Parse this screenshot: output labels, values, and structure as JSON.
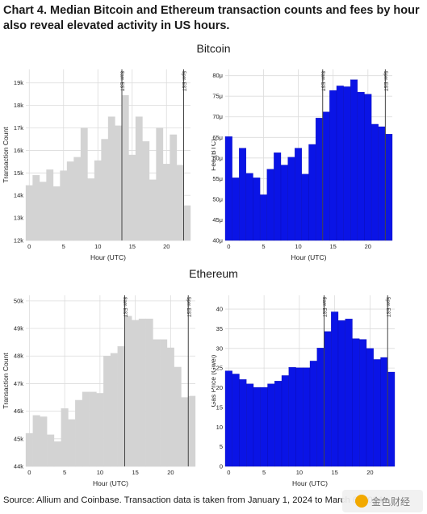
{
  "title": "Chart 4. Median Bitcoin and Ethereum transaction counts and fees by hour also reveal elevated activity in US hours.",
  "sections": {
    "bitcoin": "Bitcoin",
    "ethereum": "Ethereum"
  },
  "source": "Source: Allium and Coinbase. Transaction data is taken from January 1, 2024 to March 6, 2024",
  "watermark": {
    "text": "金色财经",
    "logo": "coin-logo-icon"
  },
  "colors": {
    "gray_bar": "#d3d3d3",
    "blue_bar": "#0a14e6",
    "vline": "#444444"
  },
  "chart_data": [
    {
      "id": "btc-count",
      "type": "bar",
      "xlabel": "Hour (UTC)",
      "ylabel": "Transaction Count",
      "x": [
        0,
        1,
        2,
        3,
        4,
        5,
        6,
        7,
        8,
        9,
        10,
        11,
        12,
        13,
        14,
        15,
        16,
        17,
        18,
        19,
        20,
        21,
        22,
        23
      ],
      "values": [
        14.45,
        14.9,
        14.6,
        15.15,
        14.4,
        15.1,
        15.5,
        15.7,
        17.0,
        14.75,
        15.55,
        16.5,
        17.5,
        17.1,
        18.45,
        15.8,
        17.5,
        16.4,
        14.7,
        17.0,
        15.4,
        16.7,
        15.35,
        13.55
      ],
      "ylim": [
        12,
        19.6
      ],
      "yticks": [
        12,
        13,
        14,
        15,
        16,
        17,
        18,
        19
      ],
      "ytick_labels": [
        "12k",
        "13k",
        "14k",
        "15k",
        "16k",
        "17k",
        "18k",
        "19k"
      ],
      "xticks": [
        0,
        5,
        10,
        15,
        20
      ],
      "xtick_labels": [
        "0",
        "5",
        "10",
        "15",
        "20"
      ],
      "vlines": [
        {
          "x": 13,
          "label": "8am EST"
        },
        {
          "x": 22,
          "label": "5pm EST"
        }
      ],
      "color": "#d3d3d3"
    },
    {
      "id": "btc-fee",
      "type": "bar",
      "xlabel": "Hour (UTC)",
      "ylabel": "Fee (BTC)",
      "x": [
        0,
        1,
        2,
        3,
        4,
        5,
        6,
        7,
        8,
        9,
        10,
        11,
        12,
        13,
        14,
        15,
        16,
        17,
        18,
        19,
        20,
        21,
        22,
        23
      ],
      "values": [
        65.2,
        55.2,
        62.4,
        56.3,
        55.2,
        51.1,
        57.3,
        61.3,
        58.3,
        60.2,
        62.4,
        56.1,
        63.3,
        69.7,
        71.2,
        76.4,
        77.5,
        77.3,
        79.0,
        76.0,
        75.5,
        68.2,
        67.6,
        65.8
      ],
      "ylim": [
        40,
        81.5
      ],
      "yticks": [
        40,
        45,
        50,
        55,
        60,
        65,
        70,
        75,
        80
      ],
      "ytick_labels": [
        "40μ",
        "45μ",
        "50μ",
        "55μ",
        "60μ",
        "65μ",
        "70μ",
        "75μ",
        "80μ"
      ],
      "xticks": [
        0,
        5,
        10,
        15,
        20
      ],
      "xtick_labels": [
        "0",
        "5",
        "10",
        "15",
        "20"
      ],
      "vlines": [
        {
          "x": 13,
          "label": "8am EST"
        },
        {
          "x": 22,
          "label": "5pm EST"
        }
      ],
      "color": "#0a14e6"
    },
    {
      "id": "eth-count",
      "type": "bar",
      "xlabel": "Hour (UTC)",
      "ylabel": "Transaction Count",
      "x": [
        0,
        1,
        2,
        3,
        4,
        5,
        6,
        7,
        8,
        9,
        10,
        11,
        12,
        13,
        14,
        15,
        16,
        17,
        18,
        19,
        20,
        21,
        22,
        23
      ],
      "values": [
        45.2,
        45.85,
        45.8,
        45.15,
        44.9,
        46.1,
        45.7,
        46.4,
        46.7,
        46.7,
        46.65,
        48.0,
        48.1,
        48.35,
        49.45,
        49.3,
        49.35,
        49.35,
        48.6,
        48.6,
        48.3,
        47.6,
        46.5,
        46.55
      ],
      "ylim": [
        44,
        50.2
      ],
      "yticks": [
        44,
        45,
        46,
        47,
        48,
        49,
        50
      ],
      "ytick_labels": [
        "44k",
        "45k",
        "46k",
        "47k",
        "48k",
        "49k",
        "50k"
      ],
      "xticks": [
        0,
        5,
        10,
        15,
        20
      ],
      "xtick_labels": [
        "0",
        "5",
        "10",
        "15",
        "20"
      ],
      "vlines": [
        {
          "x": 13,
          "label": "8am EST"
        },
        {
          "x": 22,
          "label": "5pm EST"
        }
      ],
      "color": "#d3d3d3"
    },
    {
      "id": "eth-gas",
      "type": "bar",
      "xlabel": "Hour (UTC)",
      "ylabel": "Gas Price (Gwei)",
      "x": [
        0,
        1,
        2,
        3,
        4,
        5,
        6,
        7,
        8,
        9,
        10,
        11,
        12,
        13,
        14,
        15,
        16,
        17,
        18,
        19,
        20,
        21,
        22,
        23
      ],
      "values": [
        24.3,
        23.5,
        22.1,
        21.0,
        20.1,
        20.1,
        21.0,
        21.7,
        23.1,
        25.2,
        25.1,
        25.1,
        26.8,
        30.1,
        34.3,
        39.3,
        37.1,
        37.5,
        32.5,
        32.3,
        30.0,
        27.2,
        27.7,
        24.0
      ],
      "ylim": [
        0,
        43.5
      ],
      "yticks": [
        0,
        5,
        10,
        15,
        20,
        25,
        30,
        35,
        40
      ],
      "ytick_labels": [
        "0",
        "5",
        "10",
        "15",
        "20",
        "25",
        "30",
        "35",
        "40"
      ],
      "xticks": [
        0,
        5,
        10,
        15,
        20
      ],
      "xtick_labels": [
        "0",
        "5",
        "10",
        "15",
        "20"
      ],
      "vlines": [
        {
          "x": 13,
          "label": "8am EST"
        },
        {
          "x": 22,
          "label": "5pm EST"
        }
      ],
      "color": "#0a14e6"
    }
  ]
}
